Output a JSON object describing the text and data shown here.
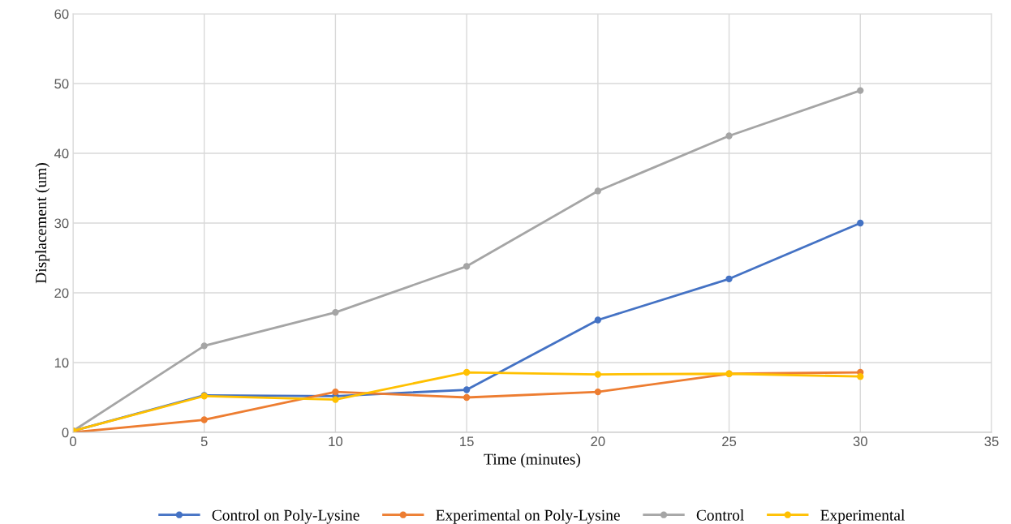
{
  "chart_data": {
    "type": "line",
    "xlabel": "Time (minutes)",
    "ylabel": "Displacement (um)",
    "x": [
      0,
      5,
      10,
      15,
      20,
      25,
      30
    ],
    "series": [
      {
        "name": "Control on Poly-Lysine",
        "color": "#4472c4",
        "values": [
          0.2,
          5.3,
          5.2,
          6.1,
          16.1,
          22.0,
          30.0
        ]
      },
      {
        "name": "Experimental on Poly-Lysine",
        "color": "#ed7d31",
        "values": [
          0,
          1.8,
          5.8,
          5.0,
          5.8,
          8.4,
          8.6
        ]
      },
      {
        "name": "Control",
        "color": "#a5a5a5",
        "values": [
          0.2,
          12.4,
          17.2,
          23.8,
          34.6,
          42.5,
          49.0
        ]
      },
      {
        "name": "Experimental",
        "color": "#ffc000",
        "values": [
          0.2,
          5.2,
          4.7,
          8.6,
          8.3,
          8.4,
          8.0
        ]
      }
    ],
    "xlim": [
      0,
      35
    ],
    "xticks": [
      0,
      5,
      10,
      15,
      20,
      25,
      30,
      35
    ],
    "ylim": [
      0,
      60
    ],
    "yticks": [
      0,
      10,
      20,
      30,
      40,
      50,
      60
    ],
    "grid": true,
    "legend": "bottom",
    "marker": "circle",
    "line_style": "solid"
  }
}
